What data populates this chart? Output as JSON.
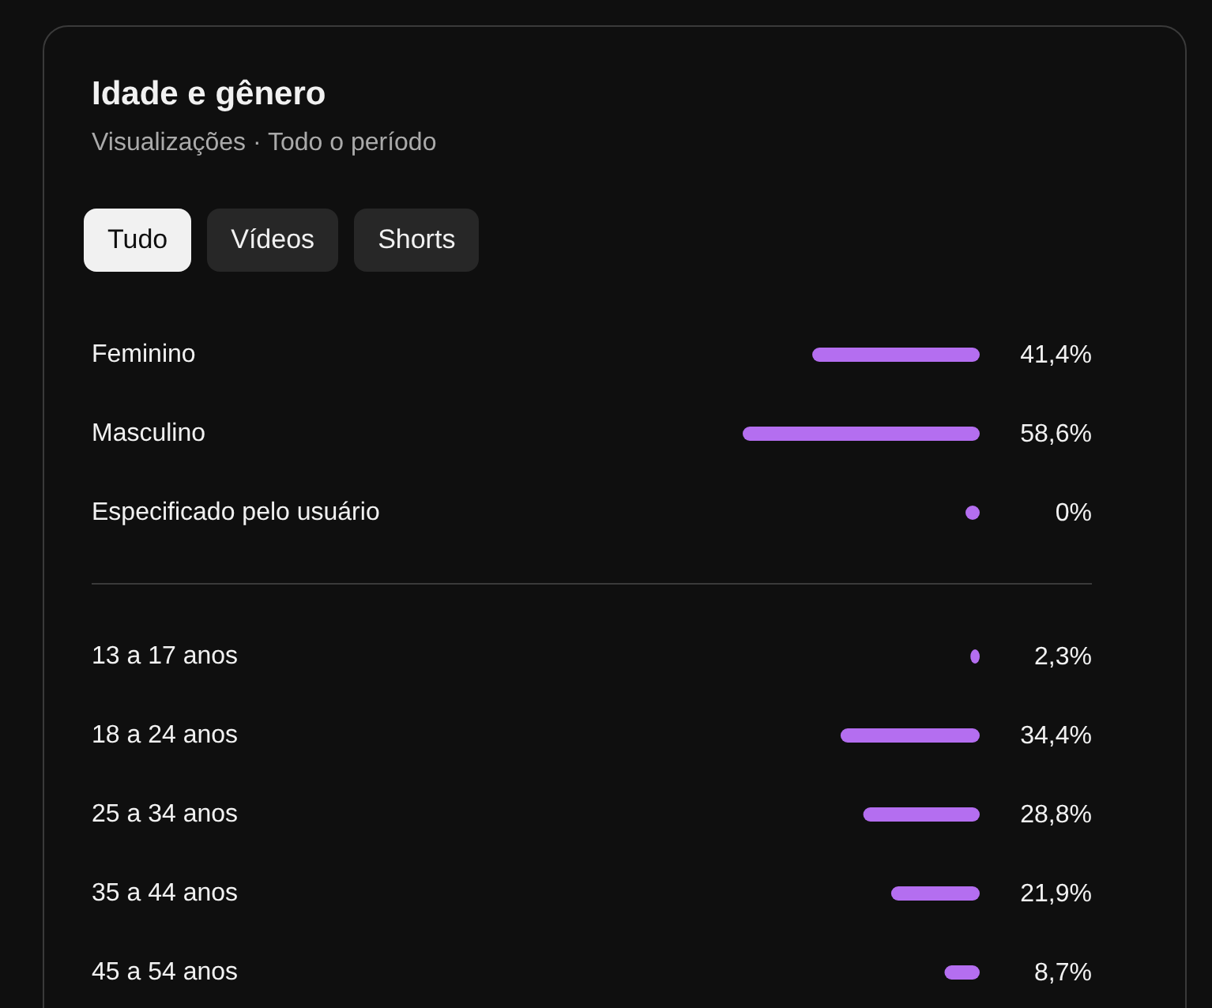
{
  "chart_data": [
    {
      "type": "bar",
      "orientation": "horizontal",
      "title": "Idade e gênero",
      "subtitle": "Visualizações · Todo o período",
      "annotations": [
        "Tudo",
        "Vídeos",
        "Shorts"
      ],
      "categories": [
        "Feminino",
        "Masculino",
        "Especificado pelo usuário"
      ],
      "values": [
        41.4,
        58.6,
        0
      ],
      "value_labels": [
        "41,4%",
        "58,6%",
        "0%"
      ],
      "color": "#b46ef0"
    },
    {
      "type": "bar",
      "orientation": "horizontal",
      "categories": [
        "13 a 17 anos",
        "18 a 24 anos",
        "25 a 34 anos",
        "35 a 44 anos",
        "45 a 54 anos"
      ],
      "values": [
        2.3,
        34.4,
        28.8,
        21.9,
        8.7
      ],
      "value_labels": [
        "2,3%",
        "34,4%",
        "28,8%",
        "21,9%",
        "8,7%"
      ],
      "color": "#b46ef0"
    }
  ]
}
